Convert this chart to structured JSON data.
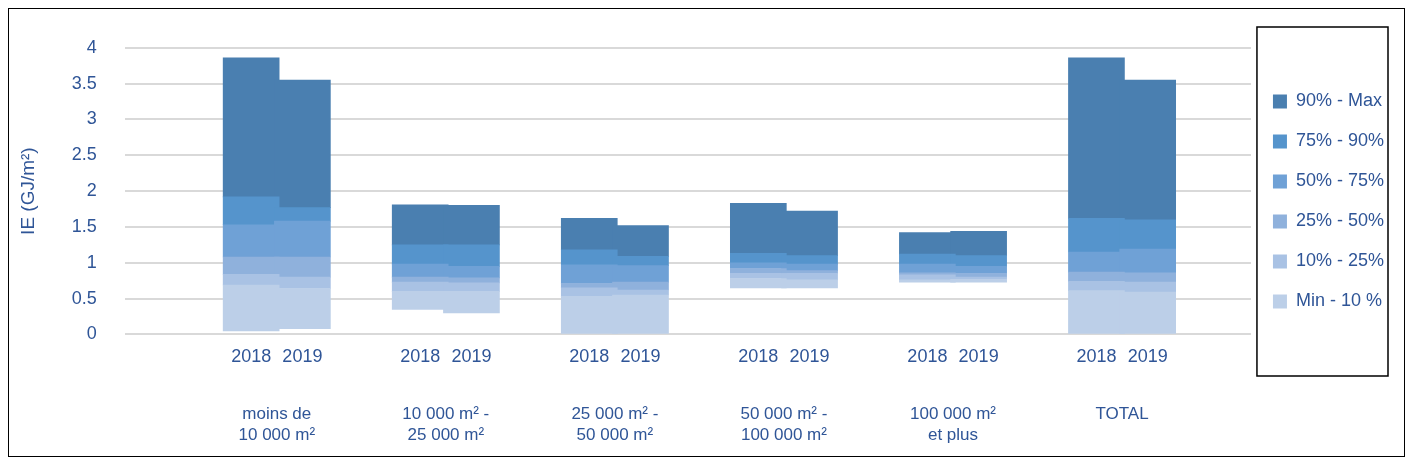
{
  "chart_data": {
    "type": "bar",
    "stacked": true,
    "ylabel": "IE (GJ/m²)",
    "categories": [
      "2018",
      "2019",
      "2018",
      "2019",
      "2018",
      "2019",
      "2018",
      "2019",
      "2018",
      "2019",
      "2018",
      "2019"
    ],
    "annotations": [
      "moins de\n10 000 m²",
      "10 000 m² -\n25 000 m²",
      "25 000 m² -\n50 000 m²",
      "50 000 m² -\n100 000 m²",
      "100 000 m²\net plus",
      "TOTAL"
    ],
    "series": [
      {
        "name": "Min - 10 %",
        "color": "#bccfe8",
        "base": [
          0.05,
          0.08,
          0.35,
          0.3,
          0,
          0,
          0.65,
          0.65,
          0.73,
          0.73,
          0,
          0
        ],
        "values": [
          0.64,
          0.56,
          0.25,
          0.3,
          0.53,
          0.55,
          0.13,
          0.11,
          0.03,
          0.04,
          0.61,
          0.59
        ]
      },
      {
        "name": "10% - 25%",
        "color": "#a9c2e4",
        "values": [
          0.15,
          0.16,
          0.13,
          0.12,
          0.12,
          0.07,
          0.07,
          0.09,
          0.07,
          0.03,
          0.13,
          0.14
        ]
      },
      {
        "name": "25% - 50%",
        "color": "#8fb1dc",
        "values": [
          0.24,
          0.28,
          0.07,
          0.07,
          0.06,
          0.11,
          0.07,
          0.04,
          0.03,
          0.05,
          0.13,
          0.13
        ]
      },
      {
        "name": "50% - 75%",
        "color": "#6fa1d6",
        "values": [
          0.45,
          0.5,
          0.18,
          0.16,
          0.26,
          0.23,
          0.08,
          0.09,
          0.12,
          0.1,
          0.28,
          0.33
        ]
      },
      {
        "name": "75% - 90%",
        "color": "#5594cc",
        "values": [
          0.39,
          0.19,
          0.27,
          0.3,
          0.21,
          0.13,
          0.13,
          0.12,
          0.14,
          0.15,
          0.47,
          0.41
        ]
      },
      {
        "name": "90% - Max",
        "color": "#4a7fb0",
        "values": [
          1.94,
          1.78,
          0.56,
          0.55,
          0.44,
          0.43,
          0.7,
          0.62,
          0.3,
          0.34,
          2.24,
          1.95
        ]
      }
    ],
    "ylim": [
      0,
      4
    ],
    "yticks": [
      0,
      0.5,
      1,
      1.5,
      2,
      2.5,
      3,
      3.5,
      4
    ],
    "grid": "y",
    "legend": "right"
  }
}
